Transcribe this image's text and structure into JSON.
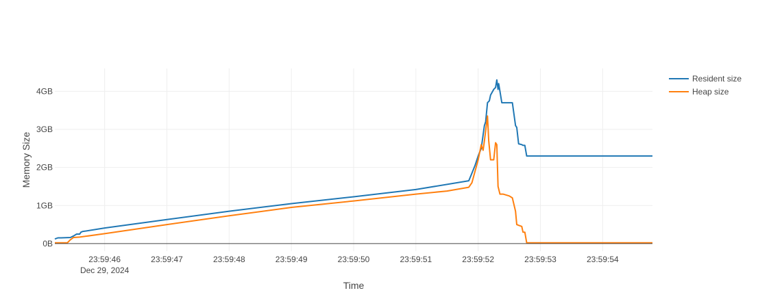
{
  "chart_data": {
    "type": "line",
    "title": "",
    "xlabel": "Time",
    "ylabel": "Memory Size",
    "x_date_label": "Dec 29, 2024",
    "x_tick_labels": [
      "23:59:46",
      "23:59:47",
      "23:59:48",
      "23:59:49",
      "23:59:50",
      "23:59:51",
      "23:59:52",
      "23:59:53",
      "23:59:54"
    ],
    "x_tick_values": [
      46,
      47,
      48,
      49,
      50,
      51,
      52,
      53,
      54
    ],
    "xlim": [
      "23:59:45.2",
      "23:59:54.8"
    ],
    "y_tick_labels": [
      "0B",
      "1GB",
      "2GB",
      "3GB",
      "4GB"
    ],
    "y_tick_values": [
      0,
      1,
      2,
      3,
      4
    ],
    "y_unit": "GB",
    "ylim": [
      -0.2,
      4.6
    ],
    "grid": true,
    "legend_position": "top-right",
    "series": [
      {
        "name": "Resident size",
        "color": "#1f77b4",
        "x": [
          45.2,
          45.25,
          45.3,
          45.45,
          45.5,
          45.55,
          45.6,
          45.62,
          45.65,
          45.7,
          46.0,
          47.0,
          48.0,
          49.0,
          50.0,
          51.0,
          51.85,
          51.9,
          51.95,
          52.0,
          52.05,
          52.1,
          52.12,
          52.15,
          52.18,
          52.2,
          52.25,
          52.28,
          52.3,
          52.32,
          52.33,
          52.35,
          52.38,
          52.4,
          52.45,
          52.55,
          52.6,
          52.62,
          52.65,
          52.7,
          52.72,
          52.75,
          52.78,
          52.8,
          53.0,
          54.0,
          54.8
        ],
        "y": [
          0.12,
          0.15,
          0.15,
          0.16,
          0.2,
          0.25,
          0.25,
          0.3,
          0.32,
          0.33,
          0.41,
          0.63,
          0.85,
          1.05,
          1.23,
          1.42,
          1.65,
          1.85,
          2.05,
          2.3,
          2.5,
          3.1,
          3.2,
          3.7,
          3.75,
          3.9,
          4.05,
          4.1,
          4.3,
          4.05,
          4.2,
          4.0,
          3.7,
          3.7,
          3.7,
          3.7,
          3.1,
          3.05,
          2.62,
          2.6,
          2.58,
          2.58,
          2.3,
          2.3,
          2.3,
          2.3,
          2.3
        ]
      },
      {
        "name": "Heap size",
        "color": "#ff7f0e",
        "x": [
          45.2,
          45.4,
          45.45,
          45.5,
          45.6,
          46.0,
          47.0,
          48.0,
          49.0,
          50.0,
          51.0,
          51.5,
          51.85,
          51.9,
          52.0,
          52.05,
          52.08,
          52.1,
          52.15,
          52.17,
          52.2,
          52.22,
          52.25,
          52.28,
          52.3,
          52.32,
          52.35,
          52.4,
          52.5,
          52.55,
          52.6,
          52.62,
          52.65,
          52.7,
          52.72,
          52.75,
          52.78,
          53.0,
          54.0,
          54.8
        ],
        "y": [
          0.02,
          0.02,
          0.1,
          0.16,
          0.17,
          0.26,
          0.5,
          0.73,
          0.95,
          1.12,
          1.3,
          1.38,
          1.48,
          1.6,
          2.2,
          2.6,
          2.45,
          2.7,
          3.35,
          2.7,
          2.2,
          2.2,
          2.2,
          2.65,
          2.6,
          1.5,
          1.3,
          1.3,
          1.25,
          1.2,
          0.85,
          0.5,
          0.48,
          0.45,
          0.3,
          0.3,
          0.02,
          0.02,
          0.02,
          0.02
        ]
      }
    ]
  }
}
